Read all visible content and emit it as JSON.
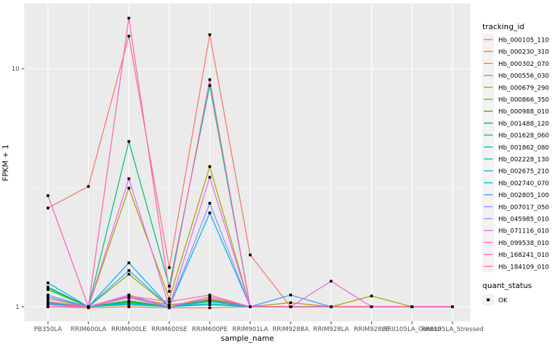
{
  "chart_data": {
    "type": "line",
    "title": "",
    "xlabel": "sample_name",
    "ylabel": "FPKM + 1",
    "y_scale": "log10",
    "y_ticks": [
      "1",
      "10"
    ],
    "ylim_log": [
      -0.06,
      1.28
    ],
    "grid": "on",
    "panel_bg": "#EBEBEB",
    "grid_color": "#FFFFFF",
    "tick_label_color": "#4D4D4D",
    "point_color": "#000000",
    "point_shape": "square",
    "legend_position": "right",
    "legend_swatch_bg": "#F2F2F2",
    "legend_title": "tracking_id",
    "quant_legend_title": "quant_status",
    "quant_legend_items": [
      {
        "label": "OK",
        "marker": "black-square"
      }
    ],
    "categories": [
      "PB350LA",
      "RRIM600LA",
      "RRIM600LE",
      "RRIM600SE",
      "RRIM600PE",
      "RRIM901LA",
      "RRIM928BA",
      "RRIM928LA",
      "RRIM928LE",
      "RRII105LA_Control",
      "RRII105LA_Stressed"
    ],
    "series": [
      {
        "name": "Hb_000105_110",
        "color": "#F8766D",
        "values": [
          2.6,
          3.2,
          13.7,
          1.46,
          13.9,
          1.65,
          1.0,
          1.0,
          1.0,
          1.0,
          1.0
        ]
      },
      {
        "name": "Hb_000230_310",
        "color": "#EA8331",
        "values": [
          1.0,
          0.99,
          1.0,
          0.99,
          0.99,
          1.0,
          1.0,
          1.0,
          1.0,
          1.0,
          1.0
        ]
      },
      {
        "name": "Hb_000302_070",
        "color": "#D89000",
        "values": [
          1.03,
          1.0,
          1.12,
          1.0,
          1.08,
          1.0,
          1.0,
          1.0,
          1.0,
          1.0,
          1.0
        ]
      },
      {
        "name": "Hb_000556_030",
        "color": "#C09B00",
        "values": [
          1.02,
          1.0,
          1.1,
          1.02,
          1.06,
          1.0,
          1.0,
          1.0,
          1.0,
          1.0,
          1.0
        ]
      },
      {
        "name": "Hb_000679_290",
        "color": "#A3A500",
        "values": [
          1.08,
          1.0,
          3.15,
          1.08,
          3.88,
          1.0,
          1.04,
          1.0,
          1.11,
          1.0,
          1.0
        ]
      },
      {
        "name": "Hb_000866_350",
        "color": "#7CAE00",
        "values": [
          1.0,
          1.0,
          1.37,
          1.0,
          1.1,
          1.0,
          1.0,
          1.0,
          1.0,
          1.0,
          1.0
        ]
      },
      {
        "name": "Hb_000988_010",
        "color": "#39B600",
        "values": [
          1.18,
          1.0,
          1.05,
          1.0,
          1.07,
          1.0,
          1.0,
          1.0,
          1.0,
          1.0,
          1.0
        ]
      },
      {
        "name": "Hb_001488_120",
        "color": "#00BB4E",
        "values": [
          1.2,
          1.0,
          1.06,
          1.0,
          1.05,
          1.0,
          1.0,
          1.0,
          1.0,
          1.0,
          1.0
        ]
      },
      {
        "name": "Hb_001628_060",
        "color": "#00BF7D",
        "values": [
          1.21,
          1.0,
          4.95,
          1.22,
          8.5,
          1.0,
          1.0,
          1.0,
          1.0,
          1.0,
          1.0
        ]
      },
      {
        "name": "Hb_001862_080",
        "color": "#00C1A3",
        "values": [
          1.05,
          1.0,
          1.04,
          1.0,
          1.05,
          1.0,
          1.0,
          1.0,
          1.0,
          1.0,
          1.0
        ]
      },
      {
        "name": "Hb_002228_130",
        "color": "#00BFC4",
        "values": [
          1.04,
          1.0,
          1.03,
          1.0,
          1.03,
          1.0,
          1.0,
          1.0,
          1.0,
          1.0,
          1.0
        ]
      },
      {
        "name": "Hb_002675_210",
        "color": "#00BAE0",
        "values": [
          1.03,
          1.0,
          1.02,
          1.0,
          1.02,
          1.0,
          1.0,
          1.0,
          1.0,
          1.0,
          1.0
        ]
      },
      {
        "name": "Hb_002740_070",
        "color": "#00B0F6",
        "values": [
          1.26,
          1.0,
          1.53,
          1.0,
          2.48,
          1.0,
          1.0,
          1.0,
          1.0,
          1.0,
          1.0
        ]
      },
      {
        "name": "Hb_002805_100",
        "color": "#35A2FF",
        "values": [
          1.1,
          1.0,
          1.42,
          1.0,
          1.06,
          1.0,
          1.12,
          1.0,
          1.0,
          1.0,
          1.0
        ]
      },
      {
        "name": "Hb_007017_050",
        "color": "#9590FF",
        "values": [
          1.12,
          1.0,
          1.1,
          1.0,
          2.72,
          1.0,
          1.0,
          1.0,
          1.0,
          1.0,
          1.0
        ]
      },
      {
        "name": "Hb_045985_010",
        "color": "#C77CFF",
        "values": [
          1.05,
          1.0,
          1.12,
          1.0,
          1.1,
          1.0,
          1.0,
          1.0,
          1.0,
          1.0,
          1.0
        ]
      },
      {
        "name": "Hb_071116_010",
        "color": "#E76BF3",
        "values": [
          1.0,
          1.0,
          3.45,
          1.0,
          3.5,
          1.0,
          1.0,
          1.0,
          1.0,
          1.0,
          1.0
        ]
      },
      {
        "name": "Hb_099538_010",
        "color": "#FA62DB",
        "values": [
          1.02,
          1.0,
          1.09,
          1.0,
          1.1,
          1.0,
          1.0,
          1.28,
          1.0,
          1.0,
          1.0
        ]
      },
      {
        "name": "Hb_168241_010",
        "color": "#FF62BC",
        "values": [
          2.93,
          1.0,
          16.3,
          1.16,
          9.0,
          1.0,
          1.0,
          1.0,
          1.0,
          1.0,
          1.0
        ]
      },
      {
        "name": "Hb_184109_010",
        "color": "#FF6A98",
        "values": [
          1.05,
          1.0,
          1.11,
          1.05,
          1.12,
          1.0,
          1.0,
          1.0,
          1.0,
          1.0,
          1.0
        ]
      }
    ]
  }
}
